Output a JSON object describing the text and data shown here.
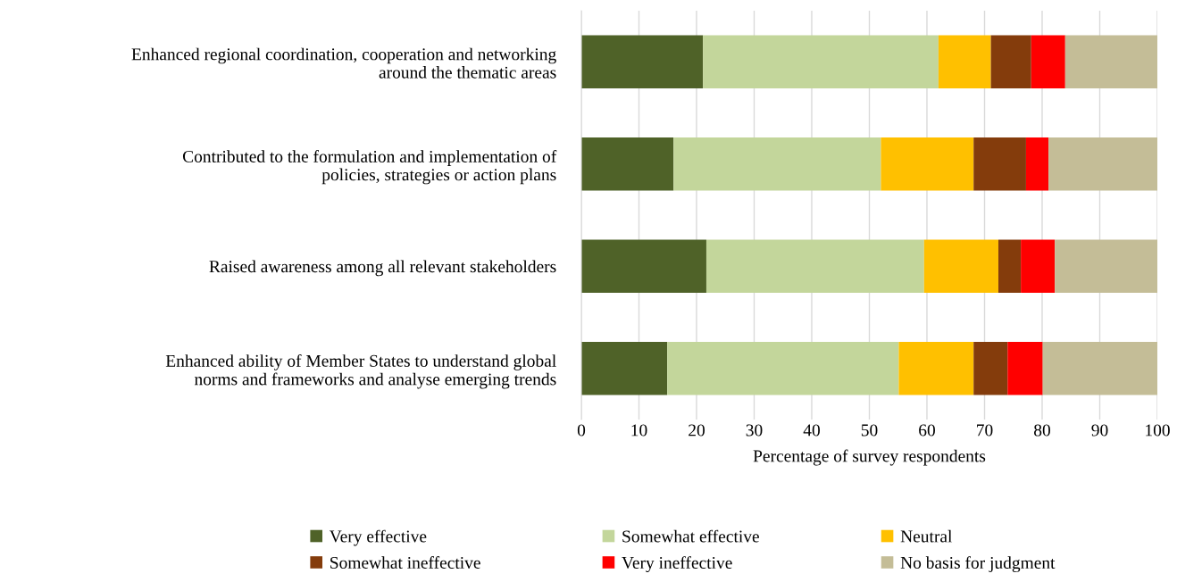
{
  "chart_data": {
    "type": "bar",
    "orientation": "horizontal",
    "stacked": true,
    "categories": [
      "Enhanced regional coordination, cooperation and networking\naround the thematic areas",
      "Contributed to the formulation and implementation of\npolicies, strategies or action plans",
      "Raised awareness among all relevant stakeholders",
      "Enhanced ability of Member States to understand global\nnorms and frameworks and analyse emerging trends"
    ],
    "series": [
      {
        "name": "Very effective",
        "color": "#4f6228",
        "values": [
          21.1,
          16.0,
          21.7,
          14.9
        ]
      },
      {
        "name": "Somewhat effective",
        "color": "#c3d69b",
        "values": [
          40.9,
          36.0,
          37.8,
          40.2
        ]
      },
      {
        "name": "Neutral",
        "color": "#ffc000",
        "values": [
          9.1,
          16.1,
          12.9,
          13.0
        ]
      },
      {
        "name": "Somewhat ineffective",
        "color": "#843c0c",
        "values": [
          7.0,
          9.1,
          3.9,
          5.9
        ]
      },
      {
        "name": "Very ineffective",
        "color": "#ff0000",
        "values": [
          5.9,
          3.9,
          5.9,
          6.1
        ]
      },
      {
        "name": "No basis for judgment",
        "color": "#c4bd97",
        "values": [
          16.0,
          18.9,
          17.8,
          19.9
        ]
      }
    ],
    "xlabel": "Percentage of survey respondents",
    "xlim": [
      0,
      100
    ],
    "xticks": [
      0,
      10,
      20,
      30,
      40,
      50,
      60,
      70,
      80,
      90,
      100
    ],
    "grid": "x",
    "legend": "bottom"
  }
}
